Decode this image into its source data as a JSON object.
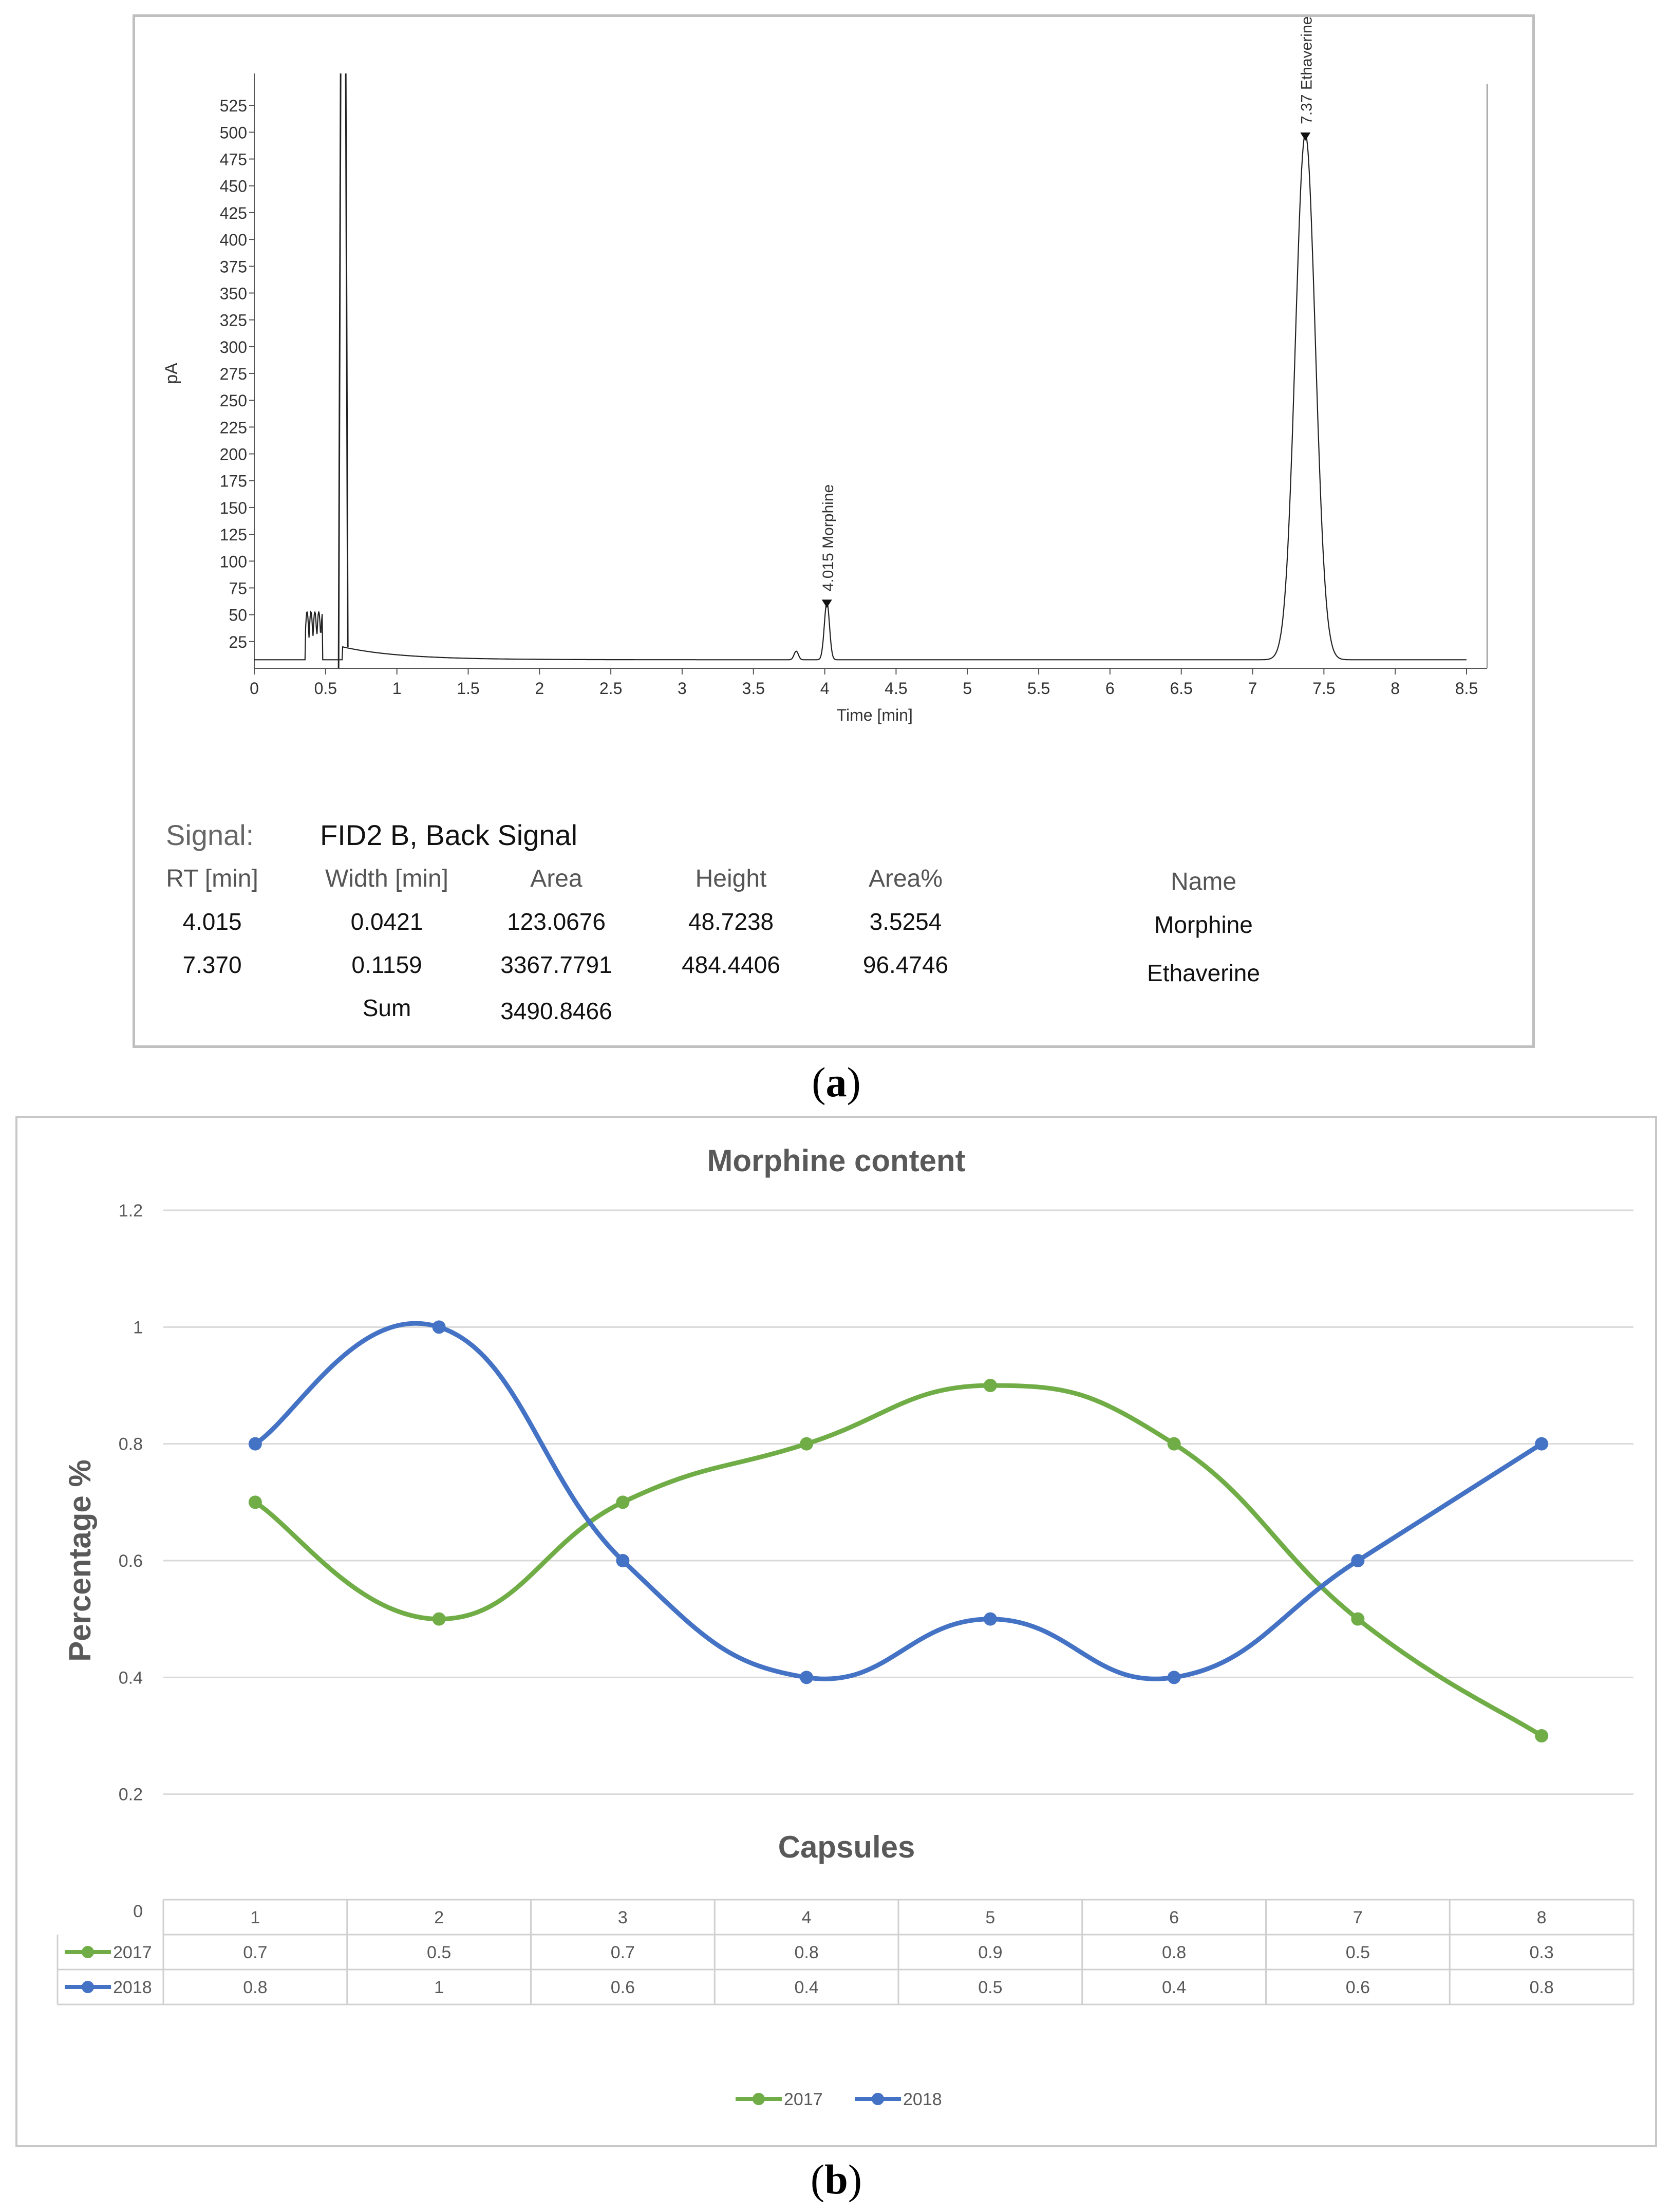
{
  "panel_a": {
    "caption_open": "(",
    "caption_letter": "a",
    "caption_close": ")",
    "peak_labels": [
      "4.015 Morphine",
      "7.37 Ethaverine"
    ],
    "signal_label": "Signal:",
    "signal_value": "FID2 B, Back Signal",
    "table": {
      "headers": [
        "RT [min]",
        "Width [min]",
        "Area",
        "Height",
        "Area%",
        "Name"
      ],
      "rows": [
        [
          "4.015",
          "0.0421",
          "123.0676",
          "48.7238",
          "3.5254",
          "Morphine"
        ],
        [
          "7.370",
          "0.1159",
          "3367.7791",
          "484.4406",
          "96.4746",
          "Ethaverine"
        ]
      ],
      "sum_label": "Sum",
      "sum_value": "3490.8466"
    }
  },
  "panel_b": {
    "caption_open": "(",
    "caption_letter": "b",
    "caption_close": ")",
    "table_series_labels": [
      "2017",
      "2018"
    ]
  },
  "chart_data": [
    {
      "type": "line",
      "title": "",
      "xlabel": "Time [min]",
      "ylabel": "pA",
      "xlim": [
        0,
        8.5
      ],
      "ylim": [
        0,
        550
      ],
      "x_ticks": [
        "0",
        "0.5",
        "1",
        "1.5",
        "2",
        "2.5",
        "3",
        "3.5",
        "4",
        "4.5",
        "5",
        "5.5",
        "6",
        "6.5",
        "7",
        "7.5",
        "8",
        "8.5"
      ],
      "y_ticks": [
        "25",
        "50",
        "75",
        "100",
        "125",
        "150",
        "175",
        "200",
        "225",
        "250",
        "275",
        "300",
        "325",
        "350",
        "375",
        "400",
        "425",
        "450",
        "475",
        "500",
        "525"
      ],
      "peaks": [
        {
          "name": "Morphine",
          "rt": 4.015,
          "height": 48.7238
        },
        {
          "name": "Ethaverine",
          "rt": 7.37,
          "height": 484.4406
        }
      ],
      "annotations": [
        "4.015 Morphine",
        "7.37 Ethaverine"
      ]
    },
    {
      "type": "line",
      "title": "Morphine content",
      "xlabel": "Capsules",
      "ylabel": "Percentage %",
      "ylim": [
        0,
        1.2
      ],
      "y_ticks": [
        "0",
        "0.2",
        "0.4",
        "0.6",
        "0.8",
        "1",
        "1.2"
      ],
      "categories": [
        "1",
        "2",
        "3",
        "4",
        "5",
        "6",
        "7",
        "8"
      ],
      "series": [
        {
          "name": "2017",
          "color": "#70ad47",
          "values": [
            0.7,
            0.5,
            0.7,
            0.8,
            0.9,
            0.8,
            0.5,
            0.3
          ]
        },
        {
          "name": "2018",
          "color": "#4472c4",
          "values": [
            0.8,
            1,
            0.6,
            0.4,
            0.5,
            0.4,
            0.6,
            0.8
          ]
        }
      ],
      "legend": "bottom",
      "grid": true
    }
  ]
}
